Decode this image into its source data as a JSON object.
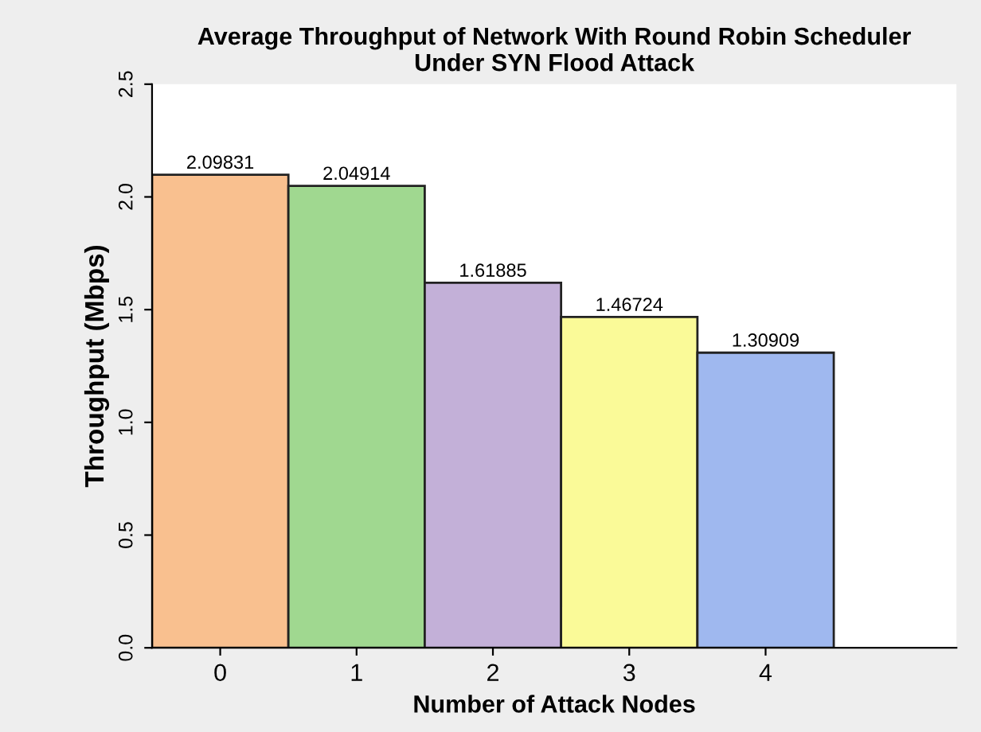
{
  "chart_data": {
    "type": "bar",
    "title": "Average Throughput of Network With Round Robin Scheduler\nUnder SYN Flood Attack",
    "xlabel": "Number of Attack Nodes",
    "ylabel": "Throughput (Mbps)",
    "categories": [
      "0",
      "1",
      "2",
      "3",
      "4"
    ],
    "values": [
      2.09831,
      2.04914,
      1.61885,
      1.46724,
      1.30909
    ],
    "colors": [
      "#f9c08f",
      "#a0d890",
      "#c3b0d8",
      "#fafa98",
      "#9fb8ef"
    ],
    "ylim": [
      0,
      2.5
    ],
    "yticks": [
      {
        "value": 0,
        "label": "0.0"
      },
      {
        "value": 0.5,
        "label": "0.5"
      },
      {
        "value": 1,
        "label": "1.0"
      },
      {
        "value": 1.5,
        "label": "1.5"
      },
      {
        "value": 2,
        "label": "2.0"
      },
      {
        "value": 2.5,
        "label": "2.5"
      }
    ],
    "data_labels": true,
    "grid": false,
    "legend": false
  }
}
